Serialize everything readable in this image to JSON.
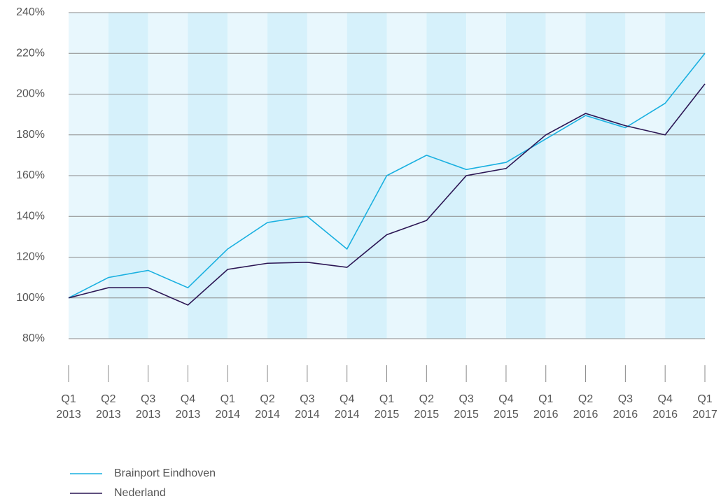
{
  "chart_data": {
    "type": "line",
    "categories": [
      "Q1 2013",
      "Q2 2013",
      "Q3 2013",
      "Q4 2013",
      "Q1 2014",
      "Q2 2014",
      "Q3 2014",
      "Q4 2014",
      "Q1 2015",
      "Q2 2015",
      "Q3 2015",
      "Q4 2015",
      "Q1 2016",
      "Q2 2016",
      "Q3 2016",
      "Q4 2016",
      "Q1 2017"
    ],
    "series": [
      {
        "name": "Brainport Eindhoven",
        "color": "#1ab0e0",
        "values": [
          100,
          110,
          113.5,
          105,
          124,
          137,
          140,
          124,
          160,
          170,
          163,
          166.5,
          178,
          189.5,
          183.5,
          195.5,
          220
        ]
      },
      {
        "name": "Nederland",
        "color": "#2c1654",
        "values": [
          100,
          105,
          105,
          96.5,
          114,
          117,
          117.5,
          115,
          131,
          138,
          160,
          163.5,
          180,
          190.5,
          184.5,
          180,
          205
        ]
      }
    ],
    "ylim": [
      80,
      240
    ],
    "yticks": [
      {
        "value": 80,
        "label": "80%"
      },
      {
        "value": 100,
        "label": "100%"
      },
      {
        "value": 120,
        "label": "120%"
      },
      {
        "value": 140,
        "label": "140%"
      },
      {
        "value": 160,
        "label": "160%"
      },
      {
        "value": 180,
        "label": "180%"
      },
      {
        "value": 200,
        "label": "200%"
      },
      {
        "value": 220,
        "label": "220%"
      },
      {
        "value": 240,
        "label": "240%"
      }
    ],
    "grid": true
  }
}
